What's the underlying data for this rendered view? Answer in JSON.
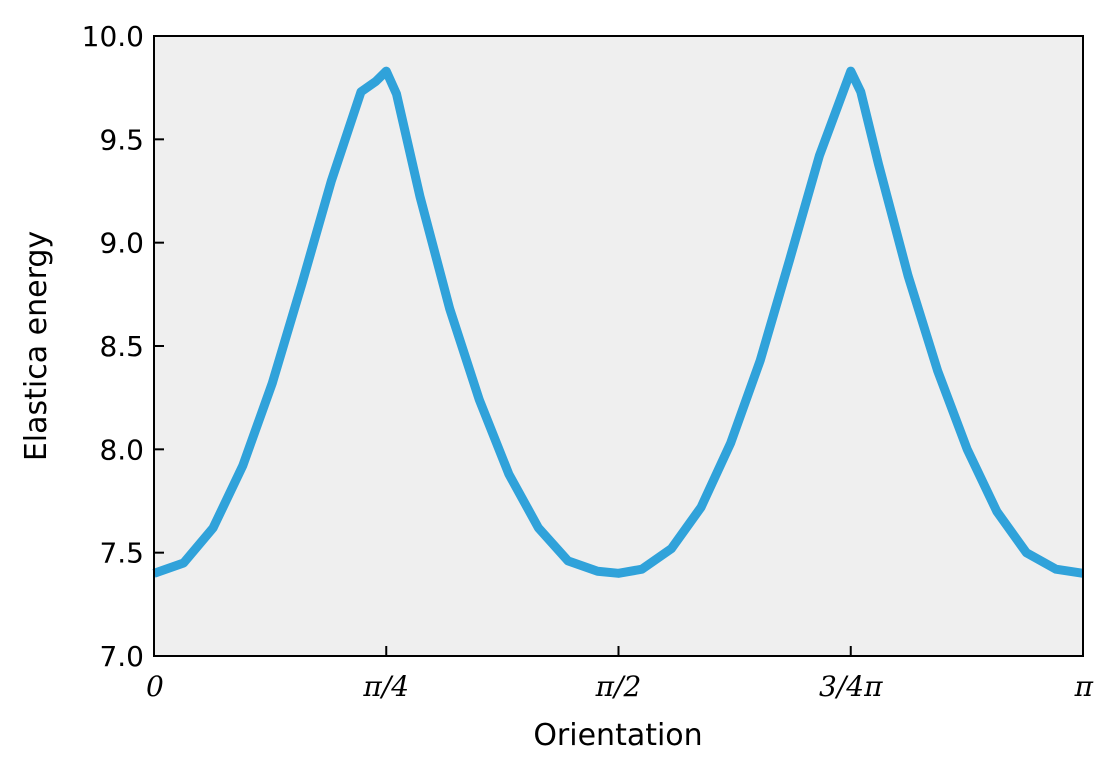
{
  "chart_data": {
    "type": "line",
    "title": "",
    "xlabel": "Orientation",
    "ylabel": "Elastica energy",
    "xlim": [
      0,
      3.14159
    ],
    "ylim": [
      7.0,
      10.0
    ],
    "x_ticks": [
      {
        "value": 0,
        "label": "0"
      },
      {
        "value": 0.7854,
        "label": "π/4"
      },
      {
        "value": 1.5708,
        "label": "π/2"
      },
      {
        "value": 2.3562,
        "label": "3/4π"
      },
      {
        "value": 3.14159,
        "label": "π"
      }
    ],
    "y_ticks": [
      "7.0",
      "7.5",
      "8.0",
      "8.5",
      "9.0",
      "9.5",
      "10.0"
    ],
    "grid": false,
    "legend": "none",
    "plot_background": "#efefef",
    "series": [
      {
        "color": "#30a2da",
        "x": [
          0.0,
          0.1,
          0.2,
          0.3,
          0.4,
          0.5,
          0.6,
          0.7,
          0.75,
          0.7854,
          0.82,
          0.9,
          1.0,
          1.1,
          1.2,
          1.3,
          1.4,
          1.5,
          1.5708,
          1.65,
          1.75,
          1.85,
          1.95,
          2.05,
          2.15,
          2.25,
          2.3562,
          2.39,
          2.45,
          2.55,
          2.65,
          2.75,
          2.85,
          2.95,
          3.05,
          3.14159
        ],
        "y": [
          7.4,
          7.45,
          7.62,
          7.92,
          8.32,
          8.8,
          9.3,
          9.73,
          9.78,
          9.83,
          9.72,
          9.22,
          8.68,
          8.24,
          7.88,
          7.62,
          7.46,
          7.41,
          7.4,
          7.42,
          7.52,
          7.72,
          8.03,
          8.43,
          8.92,
          9.42,
          9.83,
          9.73,
          9.38,
          8.84,
          8.38,
          8.0,
          7.7,
          7.5,
          7.42,
          7.4
        ]
      }
    ]
  }
}
